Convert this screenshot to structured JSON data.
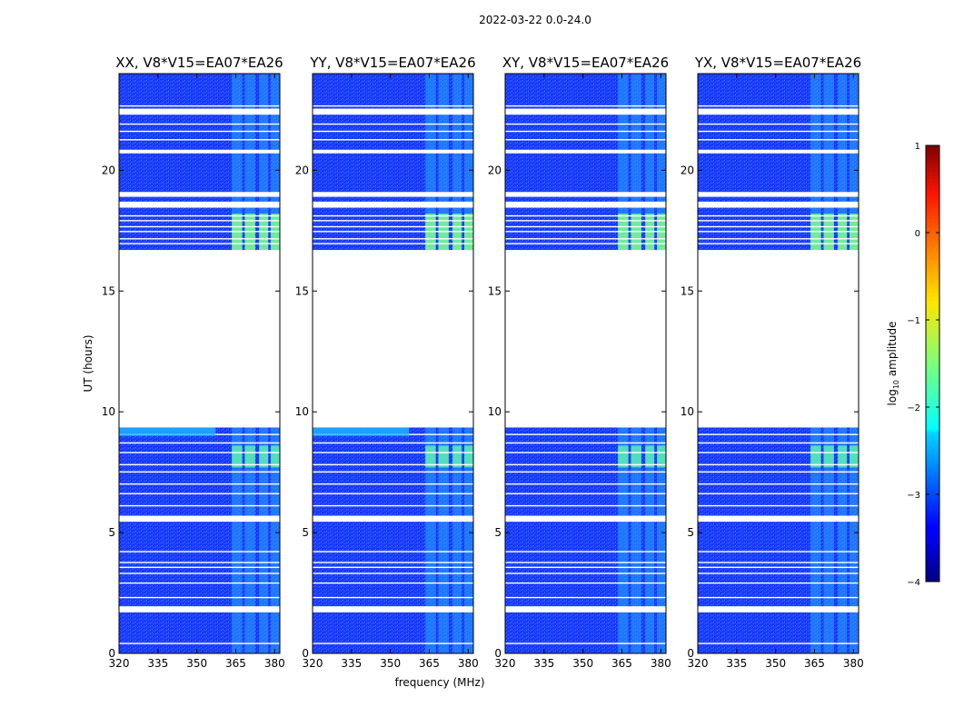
{
  "figure": {
    "suptitle": "2022-03-22 0.0-24.0"
  },
  "chart_data": {
    "type": "heatmap",
    "xlabel": "frequency (MHz)",
    "ylabel": "UT (hours)",
    "xlim": [
      320,
      382
    ],
    "ylim": [
      0,
      24
    ],
    "x_ticks": [
      320,
      335,
      350,
      365,
      380
    ],
    "y_ticks": [
      0,
      5,
      10,
      15,
      20
    ],
    "panels": [
      {
        "title": "XX, V8*V15=EA07*EA26"
      },
      {
        "title": "YY, V8*V15=EA07*EA26"
      },
      {
        "title": "XY, V8*V15=EA07*EA26"
      },
      {
        "title": "YX, V8*V15=EA07*EA26"
      }
    ],
    "no_data_hours": [
      [
        1.7,
        1.95
      ],
      [
        5.45,
        5.7
      ],
      [
        9.35,
        16.7
      ],
      [
        18.45,
        18.7
      ],
      [
        18.9,
        19.1
      ],
      [
        20.7,
        20.85
      ],
      [
        22.3,
        22.55
      ]
    ],
    "rfi_bands_mhz": [
      [
        363.5,
        367.5
      ],
      [
        368.5,
        372.5
      ],
      [
        374,
        377.5
      ],
      [
        378.5,
        382
      ]
    ],
    "strong_rfi_hours": [
      [
        16.7,
        18.2
      ],
      [
        7.7,
        8.6
      ]
    ],
    "colorbar": {
      "label": "log10 amplitude",
      "range": [
        -4,
        1
      ],
      "ticks": [
        -4,
        -3,
        -2,
        -1,
        0,
        1
      ],
      "colormap": "jet"
    }
  }
}
